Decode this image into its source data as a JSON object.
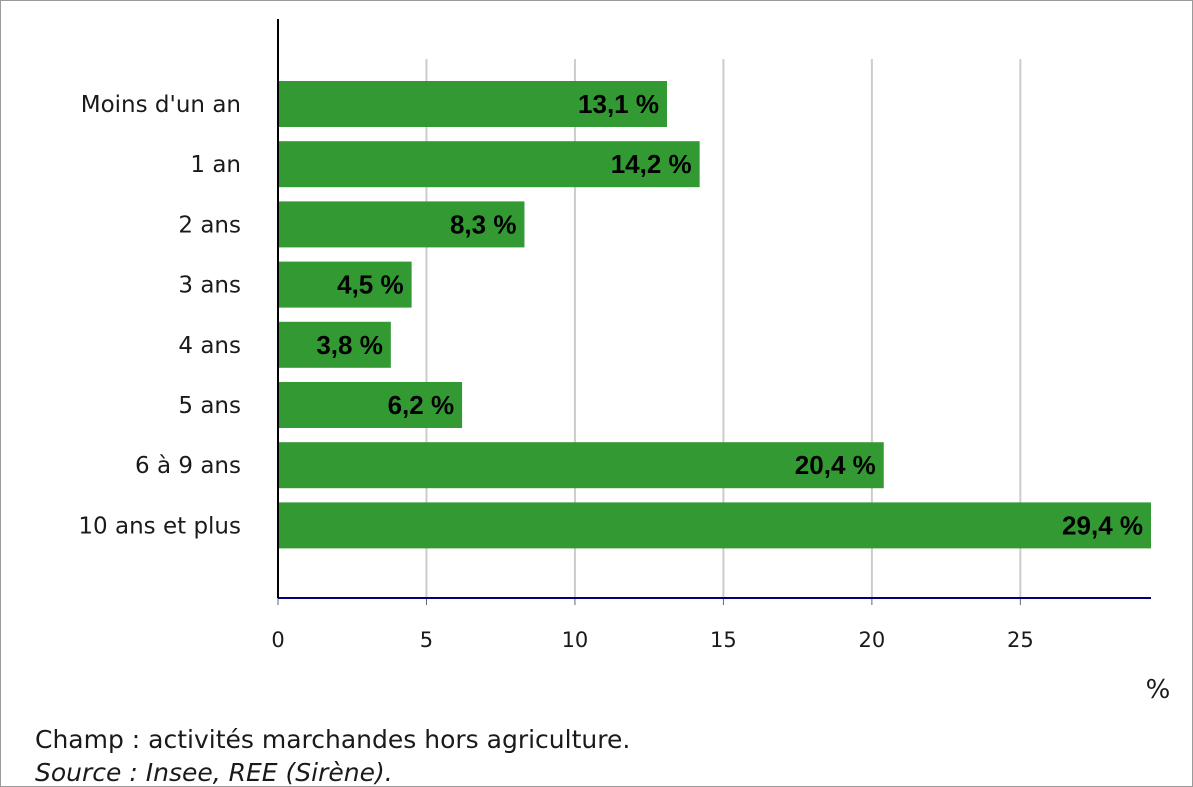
{
  "chart_data": {
    "type": "bar",
    "orientation": "horizontal",
    "categories": [
      "Moins d'un an",
      "1 an",
      "2 ans",
      "3 ans",
      "4 ans",
      "5 ans",
      "6 à 9 ans",
      "10 ans et plus"
    ],
    "values": [
      13.1,
      14.2,
      8.3,
      4.5,
      3.8,
      6.2,
      20.4,
      29.4
    ],
    "value_labels": [
      "13,1 %",
      "14,2 %",
      "8,3 %",
      "4,5 %",
      "3,8 %",
      "6,2 %",
      "20,4 %",
      "29,4 %"
    ],
    "x_ticks": [
      "0",
      "5",
      "10",
      "15",
      "20",
      "25"
    ],
    "x_tick_values": [
      0,
      5,
      10,
      15,
      20,
      25
    ],
    "xlabel": "%",
    "xlim": [
      0,
      29.4
    ],
    "grid": true,
    "colors": {
      "bar": "#339933",
      "gridline": "#cccccc",
      "x_axis": "#00007f",
      "y_axis": "#000000"
    }
  },
  "notes": {
    "field": "Champ : activités marchandes hors agriculture.",
    "source": "Source : Insee, REE (Sirène)."
  }
}
